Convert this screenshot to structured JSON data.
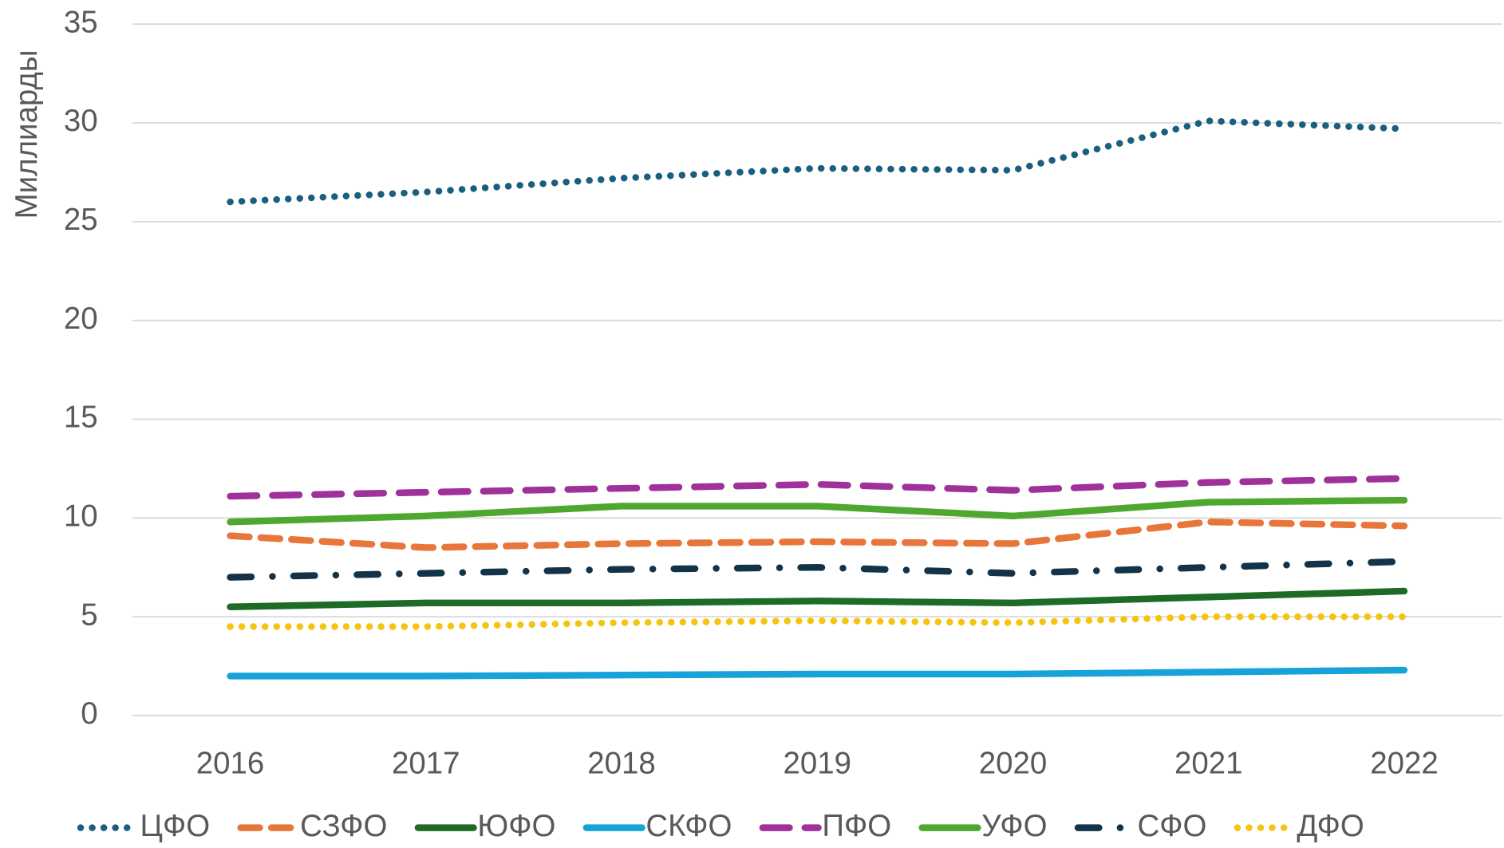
{
  "chart_data": {
    "type": "line",
    "y_label": "Миллиарды",
    "categories": [
      "2016",
      "2017",
      "2018",
      "2019",
      "2020",
      "2021",
      "2022"
    ],
    "ylim": [
      0,
      35
    ],
    "yticks": [
      0,
      5,
      10,
      15,
      20,
      25,
      30,
      35
    ],
    "grid": true,
    "legend": "bottom",
    "series": [
      {
        "name": "ЦФО",
        "color": "#1a5f80",
        "dash": "dot",
        "values": [
          26.0,
          26.5,
          27.2,
          27.7,
          27.6,
          30.1,
          29.7
        ]
      },
      {
        "name": "СЗФО",
        "color": "#e8763a",
        "dash": "dash",
        "values": [
          9.1,
          8.5,
          8.7,
          8.8,
          8.7,
          9.8,
          9.6
        ]
      },
      {
        "name": "ЮФО",
        "color": "#1e6b25",
        "dash": "solid",
        "values": [
          5.5,
          5.7,
          5.7,
          5.8,
          5.7,
          6.0,
          6.3
        ]
      },
      {
        "name": "СКФО",
        "color": "#17a3d9",
        "dash": "solid",
        "values": [
          2.0,
          2.0,
          2.05,
          2.1,
          2.1,
          2.2,
          2.3
        ]
      },
      {
        "name": "ПФО",
        "color": "#a0309a",
        "dash": "longdash",
        "values": [
          11.1,
          11.3,
          11.5,
          11.7,
          11.4,
          11.8,
          12.0
        ]
      },
      {
        "name": "УФО",
        "color": "#4ea72e",
        "dash": "solid",
        "values": [
          9.8,
          10.1,
          10.6,
          10.6,
          10.1,
          10.8,
          10.9
        ]
      },
      {
        "name": "СФО",
        "color": "#12334a",
        "dash": "dashdot",
        "values": [
          7.0,
          7.2,
          7.4,
          7.5,
          7.2,
          7.5,
          7.8
        ]
      },
      {
        "name": "ДФО",
        "color": "#f5c40f",
        "dash": "dot",
        "values": [
          4.5,
          4.5,
          4.7,
          4.8,
          4.7,
          5.0,
          5.0
        ]
      }
    ]
  }
}
